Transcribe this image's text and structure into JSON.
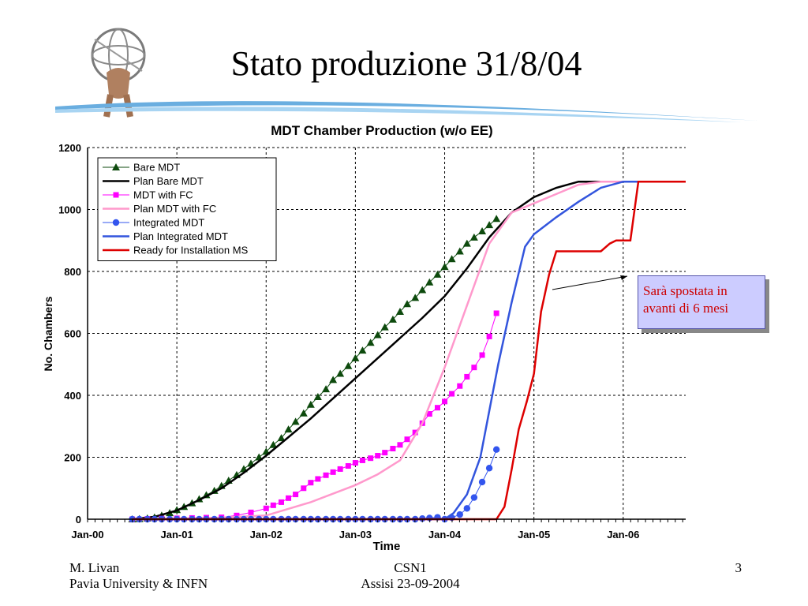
{
  "slide": {
    "title": "Stato produzione 31/8/04",
    "footer_left_line1": "M. Livan",
    "footer_left_line2": "Pavia University & INFN",
    "footer_center_line1": "CSN1",
    "footer_center_line2": "Assisi 23-09-2004",
    "page_number": "3",
    "callout_line1": "Sarà spostata in",
    "callout_line2": "avanti di 6 mesi",
    "callout_text_color": "#cc0000",
    "callout_bg_color": "#ccccff"
  },
  "chart_data": {
    "type": "line",
    "title": "MDT Chamber Production (w/o EE)",
    "xlabel": "Time",
    "ylabel": "No. Chambers",
    "ylim": [
      0,
      1200
    ],
    "yticks": [
      0,
      200,
      400,
      600,
      800,
      1000,
      1200
    ],
    "xlim": [
      2000.0,
      2006.7
    ],
    "xticks": [
      {
        "value": 2000.0,
        "label": "Jan-00"
      },
      {
        "value": 2001.0,
        "label": "Jan-01"
      },
      {
        "value": 2002.0,
        "label": "Jan-02"
      },
      {
        "value": 2003.0,
        "label": "Jan-03"
      },
      {
        "value": 2004.0,
        "label": "Jan-04"
      },
      {
        "value": 2005.0,
        "label": "Jan-05"
      },
      {
        "value": 2006.0,
        "label": "Jan-06"
      }
    ],
    "grid": true,
    "legend_position": "top-left",
    "series": [
      {
        "name": "Bare MDT",
        "color": "#0d4a0d",
        "marker": "triangle",
        "style": "marker",
        "x": [
          2000.5,
          2000.58,
          2000.67,
          2000.75,
          2000.83,
          2000.92,
          2001.0,
          2001.08,
          2001.17,
          2001.25,
          2001.33,
          2001.42,
          2001.5,
          2001.58,
          2001.67,
          2001.75,
          2001.83,
          2001.92,
          2002.0,
          2002.08,
          2002.17,
          2002.25,
          2002.33,
          2002.42,
          2002.5,
          2002.58,
          2002.67,
          2002.75,
          2002.83,
          2002.92,
          2003.0,
          2003.08,
          2003.17,
          2003.25,
          2003.33,
          2003.42,
          2003.5,
          2003.58,
          2003.67,
          2003.75,
          2003.83,
          2003.92,
          2004.0,
          2004.08,
          2004.17,
          2004.25,
          2004.33,
          2004.42,
          2004.5,
          2004.58
        ],
        "y": [
          0,
          1,
          3,
          6,
          12,
          20,
          30,
          40,
          52,
          65,
          78,
          92,
          108,
          125,
          143,
          162,
          180,
          200,
          218,
          240,
          262,
          290,
          315,
          342,
          370,
          395,
          420,
          450,
          470,
          495,
          520,
          545,
          570,
          595,
          620,
          645,
          670,
          695,
          715,
          740,
          765,
          790,
          815,
          840,
          865,
          890,
          910,
          930,
          950,
          970
        ]
      },
      {
        "name": "Plan Bare MDT",
        "color": "#000000",
        "style": "line",
        "x": [
          2000.5,
          2000.75,
          2001.0,
          2001.25,
          2001.5,
          2001.75,
          2002.0,
          2002.25,
          2002.5,
          2002.75,
          2003.0,
          2003.25,
          2003.5,
          2003.75,
          2004.0,
          2004.25,
          2004.5,
          2004.75,
          2005.0,
          2005.25,
          2005.5,
          2005.75,
          2006.0,
          2006.7
        ],
        "y": [
          0,
          8,
          28,
          62,
          100,
          150,
          205,
          265,
          325,
          390,
          455,
          520,
          585,
          650,
          720,
          810,
          910,
          990,
          1040,
          1070,
          1090,
          1090,
          1090,
          1090
        ]
      },
      {
        "name": "MDT with FC",
        "color": "#ff00ff",
        "marker": "square",
        "style": "marker",
        "x": [
          2000.5,
          2000.67,
          2000.83,
          2001.0,
          2001.17,
          2001.33,
          2001.5,
          2001.67,
          2001.83,
          2002.0,
          2002.08,
          2002.17,
          2002.25,
          2002.33,
          2002.42,
          2002.5,
          2002.58,
          2002.67,
          2002.75,
          2002.83,
          2002.92,
          2003.0,
          2003.08,
          2003.17,
          2003.25,
          2003.33,
          2003.42,
          2003.5,
          2003.58,
          2003.67,
          2003.75,
          2003.83,
          2003.92,
          2004.0,
          2004.08,
          2004.17,
          2004.25,
          2004.33,
          2004.42,
          2004.5,
          2004.58
        ],
        "y": [
          0,
          1,
          2,
          3,
          4,
          5,
          6,
          12,
          22,
          35,
          45,
          55,
          68,
          80,
          100,
          118,
          130,
          142,
          152,
          162,
          172,
          182,
          190,
          197,
          205,
          215,
          228,
          240,
          258,
          280,
          310,
          340,
          360,
          380,
          405,
          430,
          460,
          490,
          530,
          590,
          665
        ]
      },
      {
        "name": "Plan MDT with FC",
        "color": "#ff99cc",
        "style": "line",
        "x": [
          2000.5,
          2001.0,
          2001.5,
          2002.0,
          2002.5,
          2003.0,
          2003.25,
          2003.5,
          2003.75,
          2004.0,
          2004.25,
          2004.5,
          2004.75,
          2005.0,
          2005.25,
          2005.5,
          2005.75,
          2006.0,
          2006.7
        ],
        "y": [
          0,
          2,
          5,
          12,
          55,
          110,
          145,
          190,
          310,
          490,
          690,
          890,
          990,
          1020,
          1050,
          1080,
          1090,
          1090,
          1090
        ]
      },
      {
        "name": "Integrated MDT",
        "color": "#3355ee",
        "marker": "circle",
        "style": "marker",
        "x": [
          2000.5,
          2000.58,
          2000.67,
          2000.75,
          2000.83,
          2000.92,
          2001.0,
          2001.08,
          2001.17,
          2001.25,
          2001.33,
          2001.42,
          2001.5,
          2001.58,
          2001.67,
          2001.75,
          2001.83,
          2001.92,
          2002.0,
          2002.08,
          2002.17,
          2002.25,
          2002.33,
          2002.42,
          2002.5,
          2002.58,
          2002.67,
          2002.75,
          2002.83,
          2002.92,
          2003.0,
          2003.08,
          2003.17,
          2003.25,
          2003.33,
          2003.42,
          2003.5,
          2003.58,
          2003.67,
          2003.75,
          2003.83,
          2003.92,
          2004.0,
          2004.08,
          2004.17,
          2004.25,
          2004.33,
          2004.42,
          2004.5,
          2004.58
        ],
        "y": [
          0,
          0,
          0,
          0,
          0,
          0,
          0,
          0,
          0,
          0,
          0,
          0,
          0,
          0,
          0,
          0,
          0,
          0,
          0,
          0,
          0,
          0,
          0,
          0,
          0,
          0,
          0,
          0,
          0,
          0,
          0,
          0,
          0,
          0,
          0,
          0,
          0,
          0,
          0,
          2,
          4,
          6,
          0,
          5,
          15,
          35,
          70,
          120,
          165,
          225
        ]
      },
      {
        "name": "Plan Integrated MDT",
        "color": "#3355dd",
        "style": "line",
        "x": [
          2000.5,
          2003.75,
          2004.0,
          2004.1,
          2004.25,
          2004.4,
          2004.5,
          2004.6,
          2004.75,
          2004.9,
          2005.0,
          2005.25,
          2005.5,
          2005.75,
          2006.0,
          2006.7
        ],
        "y": [
          0,
          0,
          0,
          20,
          80,
          200,
          350,
          500,
          700,
          880,
          920,
          975,
          1025,
          1070,
          1090,
          1090
        ]
      },
      {
        "name": "Ready for Installation MS",
        "color": "#dd0000",
        "style": "line",
        "x": [
          2000.5,
          2004.5,
          2004.58,
          2004.67,
          2004.75,
          2004.83,
          2004.92,
          2005.0,
          2005.08,
          2005.17,
          2005.25,
          2005.5,
          2005.75,
          2005.85,
          2005.92,
          2006.0,
          2006.08,
          2006.17,
          2006.25,
          2006.7
        ],
        "y": [
          0,
          0,
          0,
          40,
          160,
          290,
          380,
          470,
          670,
          790,
          865,
          865,
          865,
          890,
          900,
          900,
          900,
          1090,
          1090,
          1090
        ]
      }
    ],
    "annotations": [
      {
        "text": "Sarà spostata in avanti di 6 mesi",
        "arrow_to": {
          "x": 2006.0,
          "y": 800
        }
      }
    ]
  }
}
